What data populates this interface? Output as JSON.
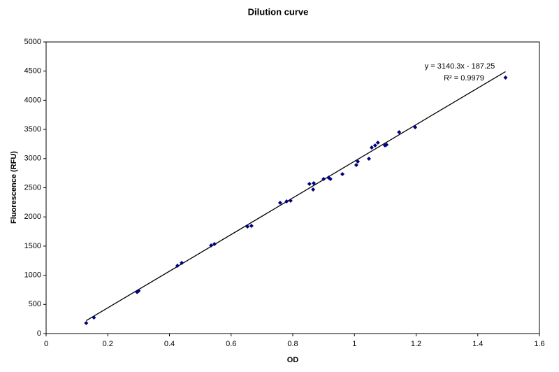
{
  "chart_data": {
    "type": "scatter",
    "title": "Dilution curve",
    "x_label": "OD",
    "y_label": "Fluorescence (RFU)",
    "series": [
      {
        "name": null,
        "color": "#000080",
        "x": [
          0.13,
          0.155,
          0.295,
          0.3,
          0.426,
          0.44,
          0.535,
          0.546,
          0.653,
          0.666,
          0.759,
          0.78,
          0.793,
          0.854,
          0.866,
          0.868,
          0.9,
          0.916,
          0.922,
          0.961,
          1.006,
          1.011,
          1.047,
          1.056,
          1.067,
          1.076,
          1.099,
          1.104,
          1.145,
          1.197,
          1.49
        ],
        "values": [
          180,
          275,
          710,
          731,
          1163,
          1211,
          1511,
          1535,
          1835,
          1847,
          2242,
          2266,
          2278,
          2566,
          2470,
          2578,
          2650,
          2674,
          2650,
          2734,
          2890,
          2950,
          2998,
          3190,
          3225,
          3273,
          3225,
          3237,
          3453,
          3537,
          4388
        ]
      }
    ],
    "trendline": {
      "slope": 3140.3,
      "intercept": -187.25,
      "color": "#000000",
      "equation": "y = 3140.3x - 187.25",
      "r_squared": "R² = 0.9979"
    },
    "xlim": [
      0,
      1.6
    ],
    "xticks": [
      0,
      0.2,
      0.4,
      0.6,
      0.8,
      1,
      1.2,
      1.4,
      1.6
    ],
    "ylim": [
      0,
      5000
    ],
    "yticks": [
      0,
      500,
      1000,
      1500,
      2000,
      2500,
      3000,
      3500,
      4000,
      4500,
      5000
    ],
    "grid": false,
    "legend": false
  }
}
